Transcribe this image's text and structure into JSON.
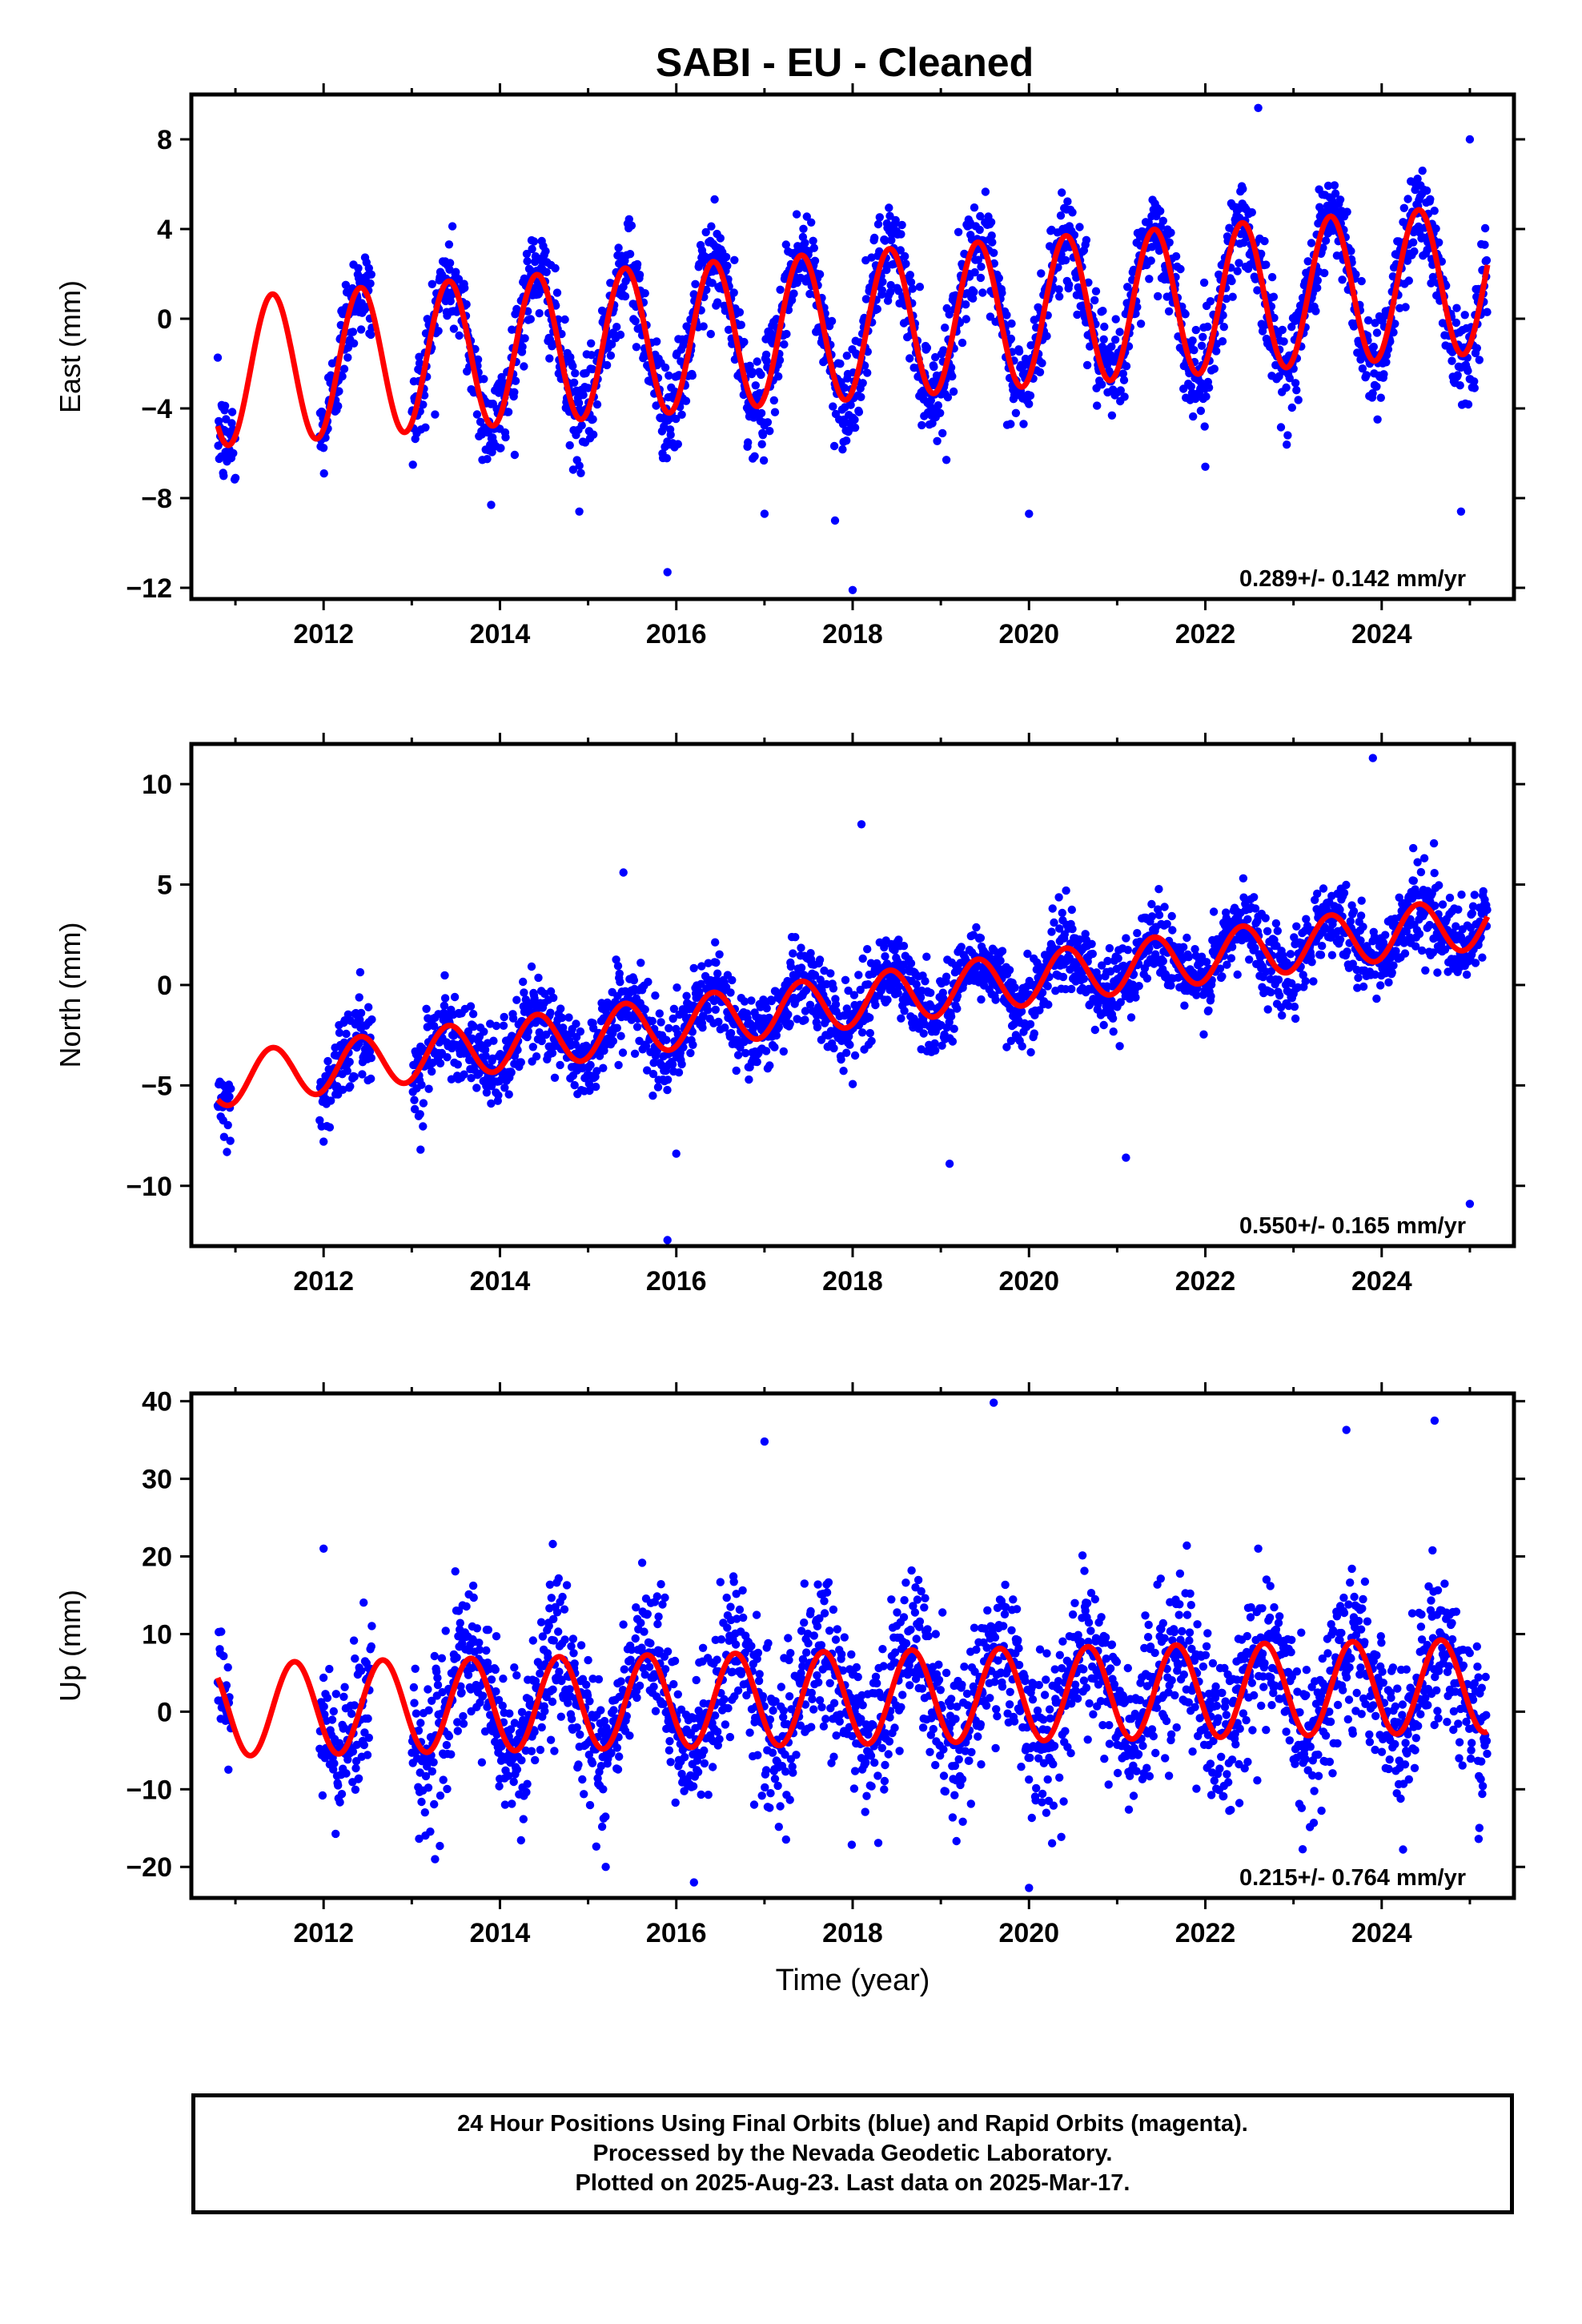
{
  "title": "SABI  - EU - Cleaned",
  "footer": {
    "line1": "24 Hour Positions Using Final Orbits (blue) and Rapid Orbits (magenta).",
    "line2": "Processed by the Nevada Geodetic Laboratory.",
    "line3": "Plotted on 2025-Aug-23. Last data on 2025-Mar-17."
  },
  "colors": {
    "points": "#0000ff",
    "fit": "#ff0000",
    "axes": "#000000"
  },
  "chart_data": [
    {
      "type": "scatter",
      "panel": "east",
      "xlabel": "",
      "ylabel": "East (mm)",
      "xlim": [
        2010.5,
        2025.5
      ],
      "ylim": [
        -12.5,
        10
      ],
      "xticks": [
        2012,
        2014,
        2016,
        2018,
        2020,
        2022,
        2024
      ],
      "yticks": [
        8,
        4,
        0,
        -4,
        -8,
        -12
      ],
      "ytick_labels": [
        "8",
        "4",
        "0",
        "−4",
        "−8",
        "−12"
      ],
      "rate_text": "0.289+/- 0.142 mm/yr",
      "data_range": [
        2010.8,
        2025.2
      ],
      "gaps": [
        [
          2011.0,
          2011.95
        ],
        [
          2012.55,
          2013.0
        ]
      ],
      "trend": {
        "slope": 0.289,
        "intercept_2018": -0.3,
        "amplitude": 3.3,
        "phase_peak": 0.42
      },
      "noise_sd": 1.1,
      "outliers": [
        [
          2015.9,
          -11.3
        ],
        [
          2018.0,
          -12.1
        ],
        [
          2017.8,
          -9.0
        ],
        [
          2020.0,
          -8.7
        ],
        [
          2024.9,
          -8.6
        ],
        [
          2025.0,
          8.0
        ],
        [
          2022.6,
          9.4
        ],
        [
          2011.0,
          -7.1
        ],
        [
          2013.9,
          -8.3
        ],
        [
          2014.9,
          -8.6
        ],
        [
          2017.0,
          -8.7
        ],
        [
          2022.0,
          -6.6
        ]
      ]
    },
    {
      "type": "scatter",
      "panel": "north",
      "xlabel": "",
      "ylabel": "North (mm)",
      "xlim": [
        2010.5,
        2025.5
      ],
      "ylim": [
        -13,
        12
      ],
      "xticks": [
        2012,
        2014,
        2016,
        2018,
        2020,
        2022,
        2024
      ],
      "yticks": [
        10,
        5,
        0,
        -5,
        -10
      ],
      "ytick_labels": [
        "10",
        "5",
        "0",
        "−5",
        "−10"
      ],
      "rate_text": "0.550+/- 0.165 mm/yr",
      "data_range": [
        2010.8,
        2025.2
      ],
      "gaps": [
        [
          2011.0,
          2011.95
        ],
        [
          2012.55,
          2013.0
        ]
      ],
      "trend": {
        "slope": 0.55,
        "intercept_2018": -0.8,
        "amplitude": 1.3,
        "phase_peak": 0.42
      },
      "noise_sd": 1.0,
      "outliers": [
        [
          2015.9,
          -12.7
        ],
        [
          2016.0,
          -8.4
        ],
        [
          2019.1,
          -8.9
        ],
        [
          2012.0,
          -7.8
        ],
        [
          2013.1,
          -8.2
        ],
        [
          2018.1,
          8.0
        ],
        [
          2023.9,
          11.3
        ],
        [
          2015.4,
          5.6
        ],
        [
          2021.1,
          -8.6
        ],
        [
          2025.0,
          -10.9
        ]
      ]
    },
    {
      "type": "scatter",
      "panel": "up",
      "xlabel": "Time (year)",
      "ylabel": "Up (mm)",
      "xlim": [
        2010.5,
        2025.5
      ],
      "ylim": [
        -24,
        41
      ],
      "xticks": [
        2012,
        2014,
        2016,
        2018,
        2020,
        2022,
        2024
      ],
      "yticks": [
        40,
        30,
        20,
        10,
        0,
        -10,
        -20
      ],
      "ytick_labels": [
        "40",
        "30",
        "20",
        "10",
        "0",
        "−10",
        "−20"
      ],
      "rate_text": "0.215+/- 0.764 mm/yr",
      "data_range": [
        2010.8,
        2025.2
      ],
      "gaps": [
        [
          2011.0,
          2011.95
        ],
        [
          2012.55,
          2013.0
        ]
      ],
      "trend": {
        "slope": 0.215,
        "intercept_2018": 1.8,
        "amplitude": 6.0,
        "phase_peak": 0.67
      },
      "noise_sd": 4.8,
      "outliers": [
        [
          2019.6,
          39.8
        ],
        [
          2017.0,
          34.8
        ],
        [
          2016.2,
          -22.0
        ],
        [
          2020.0,
          -22.7
        ],
        [
          2015.2,
          -20.0
        ],
        [
          2024.6,
          37.5
        ],
        [
          2023.6,
          36.3
        ],
        [
          2012.0,
          21.0
        ],
        [
          2014.6,
          21.6
        ],
        [
          2025.1,
          -16.4
        ]
      ]
    }
  ]
}
